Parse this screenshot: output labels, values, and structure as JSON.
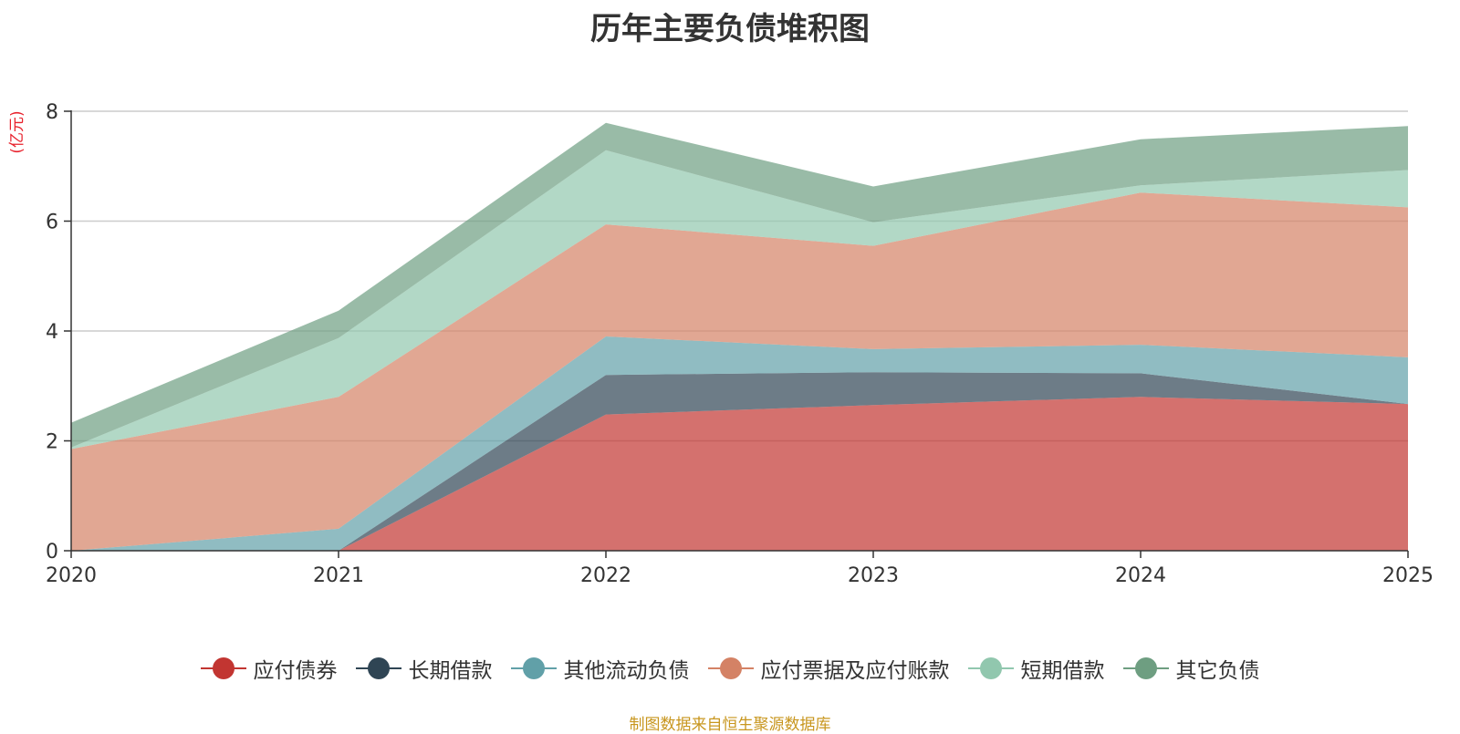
{
  "chart_data": {
    "type": "area",
    "stacked": true,
    "title": "历年主要负债堆积图",
    "ylabel": "(亿元)",
    "xlabel": "",
    "categories": [
      "2020",
      "2021",
      "2022",
      "2023",
      "2024",
      "2025"
    ],
    "ylim": [
      0,
      8
    ],
    "yticks": [
      "0",
      "2",
      "4",
      "6",
      "8"
    ],
    "grid": true,
    "legend_position": "bottom",
    "series": [
      {
        "name": "应付债券",
        "color": "#c23531",
        "values": [
          0,
          0,
          2.48,
          2.65,
          2.8,
          2.67
        ]
      },
      {
        "name": "长期借款",
        "color": "#2f4554",
        "values": [
          0,
          0,
          0.72,
          0.6,
          0.43,
          0
        ]
      },
      {
        "name": "其他流动负债",
        "color": "#61a0a8",
        "values": [
          0,
          0.4,
          0.7,
          0.42,
          0.52,
          0.85
        ]
      },
      {
        "name": "应付票据及应付账款",
        "color": "#d48265",
        "values": [
          1.85,
          2.4,
          2.04,
          1.88,
          2.77,
          2.73
        ]
      },
      {
        "name": "短期借款",
        "color": "#91c7ae",
        "values": [
          0.03,
          1.07,
          1.35,
          0.43,
          0.13,
          0.68
        ]
      },
      {
        "name": "其它负债",
        "color": "#6e9e81",
        "values": [
          0.45,
          0.5,
          0.5,
          0.65,
          0.84,
          0.8
        ]
      }
    ]
  },
  "source_text": "制图数据来自恒生聚源数据库",
  "colors": {
    "unit_label": "#e8212c",
    "source_text": "#c8961e",
    "grid": "#cccccc",
    "axis": "#333333"
  }
}
